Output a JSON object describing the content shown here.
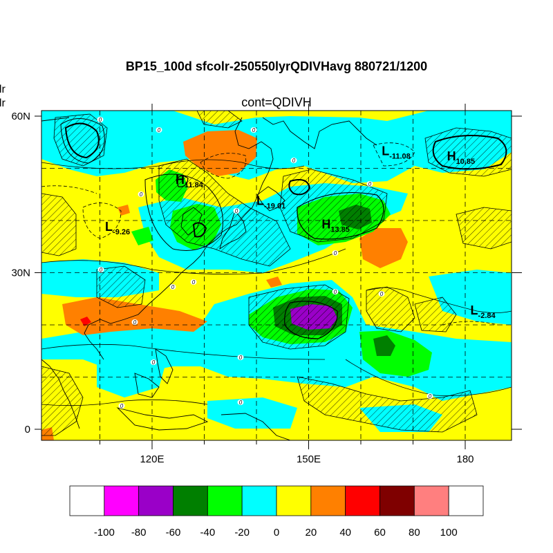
{
  "title": "BP15_100d sfcolr-250550lyrQDIVHavg  880721/1200",
  "subtitle": "cont=QDIVH",
  "left_clipped_text": [
    "olr",
    "olr"
  ],
  "axes": {
    "lat_ticks": [
      {
        "label": "60N",
        "lat": 60
      },
      {
        "label": "30N",
        "lat": 30
      },
      {
        "label": "0",
        "lat": 0
      }
    ],
    "lon_ticks": [
      {
        "label": "120E",
        "lon": 120
      },
      {
        "label": "150E",
        "lon": 150
      },
      {
        "label": "180",
        "lon": 180
      }
    ]
  },
  "centers": [
    {
      "sym": "H",
      "val": "11.84",
      "lon": 124.5,
      "lat": 47.0
    },
    {
      "sym": "L",
      "val": "-19.01",
      "lon": 140.0,
      "lat": 43.0
    },
    {
      "sym": "H",
      "val": "13.85",
      "lon": 152.5,
      "lat": 38.5
    },
    {
      "sym": "L",
      "val": "-9.26",
      "lon": 111.0,
      "lat": 38.0
    },
    {
      "sym": "L",
      "val": "-11.08",
      "lon": 164.0,
      "lat": 52.5
    },
    {
      "sym": "H",
      "val": "10.85",
      "lon": 176.5,
      "lat": 51.5
    },
    {
      "sym": "L",
      "val": "-2.84",
      "lon": 181.0,
      "lat": 22.0
    }
  ],
  "contour_zero_label": "0",
  "colorbar": {
    "colors": [
      "#ffffff",
      "#ff00ff",
      "#9a00c8",
      "#007f00",
      "#00ff00",
      "#00ffff",
      "#ffff00",
      "#ff8000",
      "#ff0000",
      "#7f0000",
      "#ff7f7f",
      "#ffffff"
    ],
    "labels": [
      "-100",
      "-80",
      "-60",
      "-40",
      "-20",
      "0",
      "20",
      "40",
      "60",
      "80",
      "100"
    ]
  }
}
